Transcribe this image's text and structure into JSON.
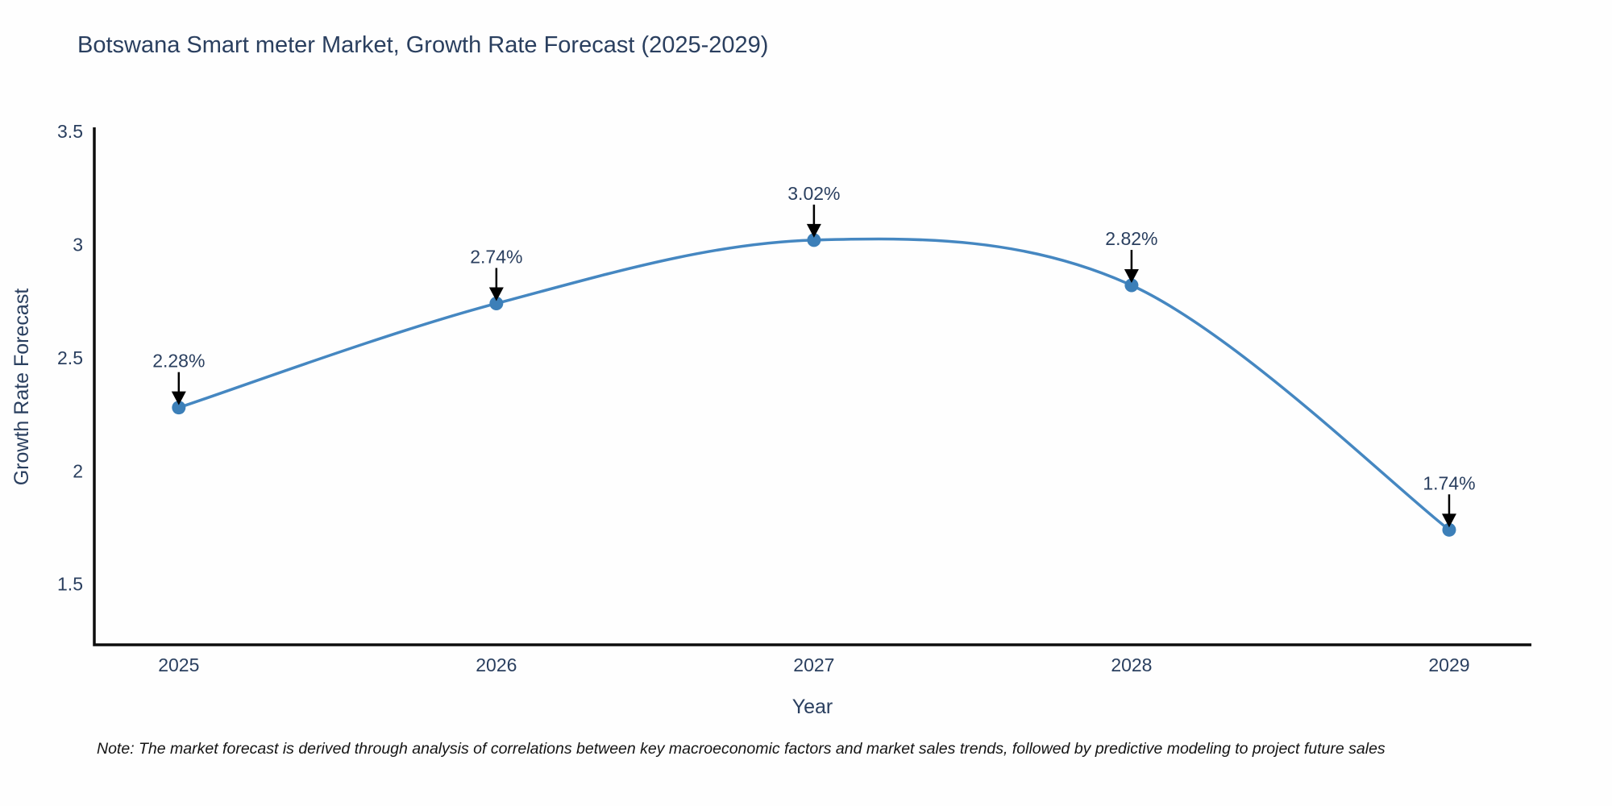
{
  "page": {
    "note": "Note: The market forecast is derived through analysis of correlations between key macroeconomic factors and market sales trends, followed by predictive modeling to project future sales"
  },
  "colors": {
    "title_text": "#2a3f5f",
    "tick_text": "#2a3f5f",
    "axis_line": "#0d0d0d",
    "series_line": "#4587c1",
    "marker_fill": "#3c7fb8",
    "annotation_text": "#2a3f5f",
    "arrow": "#000000",
    "background": "#fefefe",
    "note_text": "#141414"
  },
  "chart_data": {
    "type": "line",
    "line_shape": "spline",
    "title": "Botswana Smart meter Market, Growth Rate Forecast (2025-2029)",
    "xlabel": "Year",
    "ylabel": "Growth Rate Forecast",
    "x": [
      2025,
      2026,
      2027,
      2028,
      2029
    ],
    "y": [
      2.28,
      2.74,
      3.02,
      2.82,
      1.74
    ],
    "point_labels": [
      "2.28%",
      "2.74%",
      "3.02%",
      "2.82%",
      "1.74%"
    ],
    "xtick_labels": [
      "2025",
      "2026",
      "2027",
      "2028",
      "2029"
    ],
    "yticks": [
      1.5,
      2,
      2.5,
      3,
      3.5
    ],
    "ytick_labels": [
      "1.5",
      "2",
      "2.5",
      "3",
      "3.5"
    ],
    "xlim": [
      2024.734,
      2029.259
    ],
    "ylim": [
      1.232,
      3.518
    ],
    "grid": false,
    "legend": "none",
    "annotation_style": "value label above each point with a downward black arrow touching the marker"
  }
}
